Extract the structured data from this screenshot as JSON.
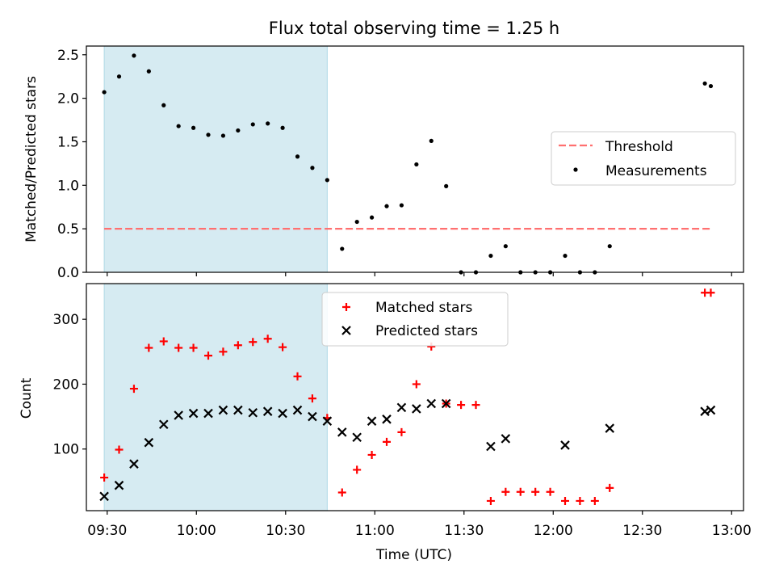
{
  "chart_data": [
    {
      "type": "scatter",
      "title": "Flux total observing time = 1.25 h",
      "xlabel": "",
      "ylabel": "Matched/Predicted stars",
      "xlim": [
        "09:23",
        "13:04"
      ],
      "ylim": [
        0,
        2.6
      ],
      "yticks": [
        "0.0",
        "0.5",
        "1.0",
        "1.5",
        "2.0",
        "2.5"
      ],
      "highlight_span": [
        "09:29",
        "10:44"
      ],
      "highlight_color": "#add8e6",
      "legend_position": "center-right",
      "threshold": {
        "name": "Threshold",
        "value": 0.5,
        "x_range": [
          "09:29",
          "12:53"
        ],
        "color": "#ff7070",
        "style": "dashed"
      },
      "series": [
        {
          "name": "Measurements",
          "color": "#000000",
          "x": [
            "09:29",
            "09:34",
            "09:39",
            "09:44",
            "09:49",
            "09:54",
            "09:59",
            "10:04",
            "10:09",
            "10:14",
            "10:19",
            "10:24",
            "10:29",
            "10:34",
            "10:39",
            "10:44",
            "10:49",
            "10:54",
            "10:59",
            "11:04",
            "11:09",
            "11:14",
            "11:19",
            "11:24",
            "11:29",
            "11:34",
            "11:39",
            "11:44",
            "11:49",
            "11:54",
            "11:59",
            "12:04",
            "12:09",
            "12:14",
            "12:19",
            "12:51",
            "12:53"
          ],
          "y": [
            2.07,
            2.25,
            2.49,
            2.31,
            1.92,
            1.68,
            1.66,
            1.58,
            1.57,
            1.63,
            1.7,
            1.71,
            1.66,
            1.33,
            1.2,
            1.06,
            0.27,
            0.58,
            0.63,
            0.76,
            0.77,
            1.24,
            1.51,
            0.99,
            0,
            0,
            0.19,
            0.3,
            0,
            0,
            0,
            0.19,
            0,
            0,
            0.3,
            2.17,
            2.14
          ]
        }
      ]
    },
    {
      "type": "scatter",
      "title": "",
      "xlabel": "Time (UTC)",
      "ylabel": "Count",
      "xlim": [
        "09:23",
        "13:04"
      ],
      "ylim": [
        5,
        355
      ],
      "yticks": [
        "100",
        "200",
        "300"
      ],
      "xticks": [
        "09:30",
        "10:00",
        "10:30",
        "11:00",
        "11:30",
        "12:00",
        "12:30",
        "13:00"
      ],
      "highlight_span": [
        "09:29",
        "10:44"
      ],
      "legend_position": "upper-center",
      "series": [
        {
          "name": "Matched stars",
          "marker": "+",
          "color": "#ff0000",
          "x": [
            "09:29",
            "09:34",
            "09:39",
            "09:44",
            "09:49",
            "09:54",
            "09:59",
            "10:04",
            "10:09",
            "10:14",
            "10:19",
            "10:24",
            "10:29",
            "10:34",
            "10:39",
            "10:44",
            "10:49",
            "10:54",
            "10:59",
            "11:04",
            "11:09",
            "11:14",
            "11:19",
            "11:24",
            "11:29",
            "11:34",
            "11:39",
            "11:44",
            "11:49",
            "11:54",
            "11:59",
            "12:04",
            "12:09",
            "12:14",
            "12:19",
            "12:51",
            "12:53"
          ],
          "y": [
            56,
            99,
            193,
            256,
            266,
            256,
            256,
            244,
            250,
            260,
            265,
            270,
            257,
            212,
            178,
            148,
            33,
            68,
            91,
            111,
            126,
            200,
            258,
            170,
            168,
            168,
            20,
            34,
            34,
            34,
            34,
            20,
            20,
            20,
            40,
            341,
            341
          ]
        },
        {
          "name": "Predicted stars",
          "marker": "x",
          "color": "#000000",
          "x": [
            "09:29",
            "09:34",
            "09:39",
            "09:44",
            "09:49",
            "09:54",
            "09:59",
            "10:04",
            "10:09",
            "10:14",
            "10:19",
            "10:24",
            "10:29",
            "10:34",
            "10:39",
            "10:44",
            "10:49",
            "10:54",
            "10:59",
            "11:04",
            "11:09",
            "11:14",
            "11:19",
            "11:24",
            "11:39",
            "11:44",
            "12:04",
            "12:19",
            "12:51",
            "12:53"
          ],
          "y": [
            27,
            44,
            77,
            110,
            138,
            152,
            155,
            155,
            160,
            160,
            156,
            158,
            155,
            160,
            150,
            143,
            126,
            118,
            143,
            146,
            164,
            162,
            170,
            170,
            104,
            116,
            106,
            132,
            158,
            160
          ]
        }
      ]
    }
  ]
}
